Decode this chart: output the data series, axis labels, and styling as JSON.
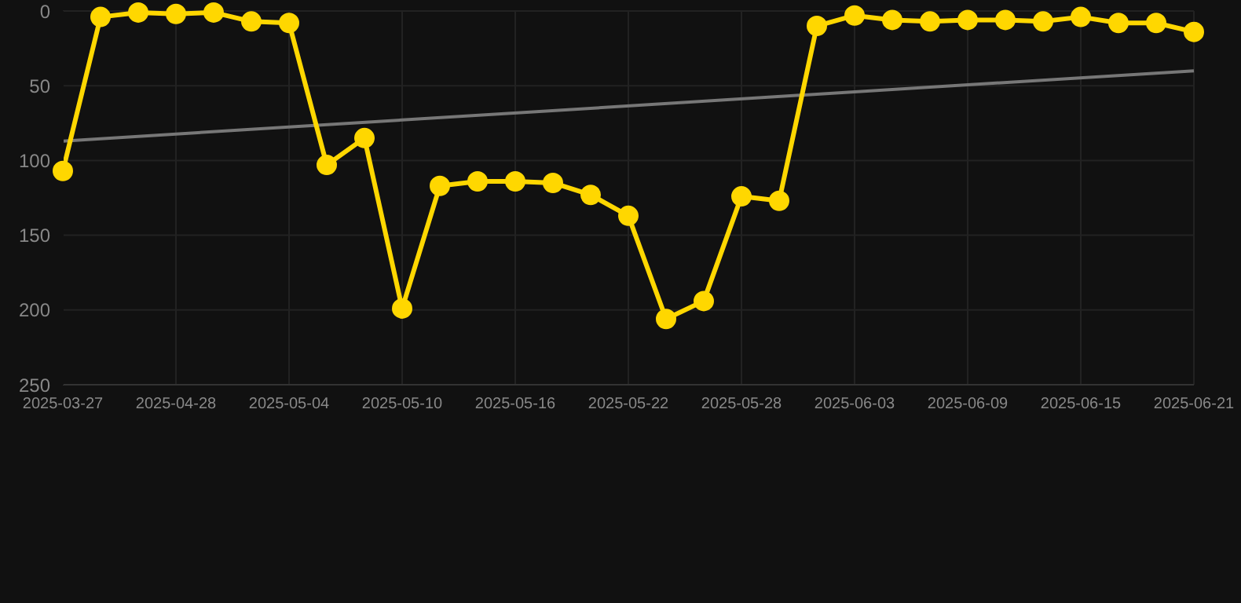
{
  "chart_data": {
    "type": "line",
    "categories": [
      "2025-03-27",
      null,
      null,
      "2025-04-28",
      null,
      null,
      "2025-05-04",
      null,
      null,
      "2025-05-10",
      null,
      null,
      "2025-05-16",
      null,
      null,
      "2025-05-22",
      null,
      null,
      "2025-05-28",
      null,
      null,
      "2025-06-03",
      null,
      null,
      "2025-06-09",
      null,
      null,
      "2025-06-15",
      null,
      null,
      "2025-06-21"
    ],
    "series": [
      {
        "color": "#ffd700",
        "marker": "circle",
        "line_style": "solid",
        "values": [
          107,
          4,
          1,
          2,
          1,
          7,
          8,
          103,
          85,
          199,
          117,
          114,
          114,
          115,
          123,
          137,
          206,
          194,
          124,
          127,
          10,
          3,
          6,
          7,
          6,
          6,
          7,
          4,
          8,
          8,
          14
        ]
      },
      {
        "type": "line",
        "color": "#777777",
        "marker": "none",
        "line_style": "solid",
        "values": [
          87,
          null,
          null,
          null,
          null,
          null,
          null,
          null,
          null,
          null,
          null,
          null,
          null,
          null,
          null,
          null,
          null,
          null,
          null,
          null,
          null,
          null,
          null,
          null,
          null,
          null,
          null,
          null,
          null,
          null,
          40
        ]
      }
    ],
    "ylim": [
      250,
      0
    ],
    "yticks": [
      0,
      50,
      100,
      150,
      200,
      250
    ],
    "grid": true
  }
}
